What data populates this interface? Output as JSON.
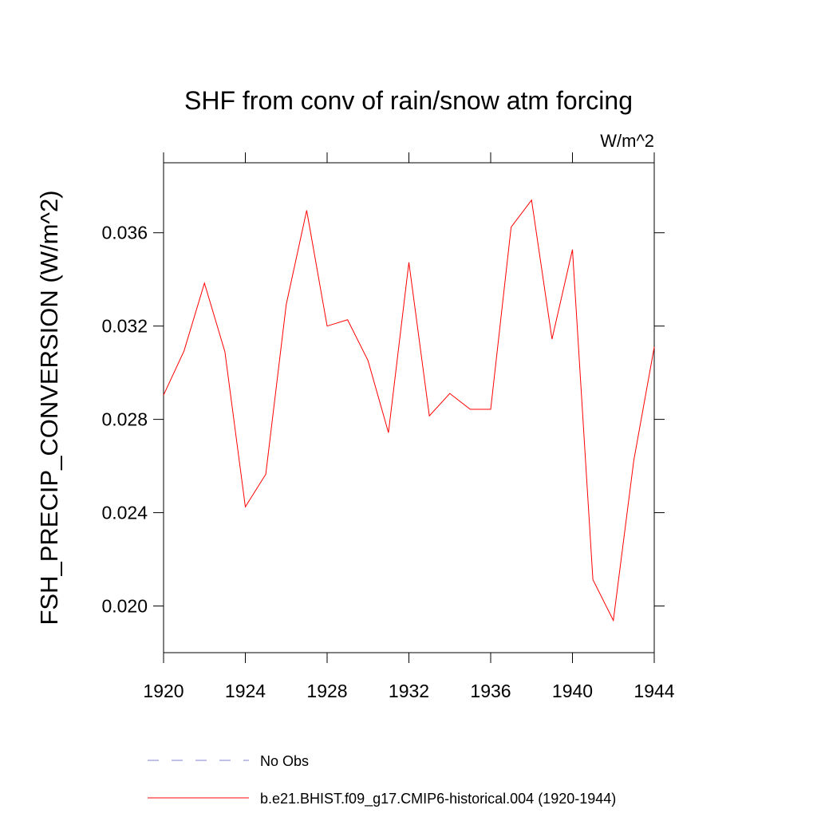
{
  "chart_data": {
    "type": "line",
    "title": "SHF from conv of rain/snow atm forcing",
    "units": "W/m^2",
    "y_label": "FSH_PRECIP_CONVERSION  (W/m^2)",
    "x": [
      1920,
      1921,
      1922,
      1923,
      1924,
      1925,
      1926,
      1927,
      1928,
      1929,
      1930,
      1931,
      1932,
      1933,
      1934,
      1935,
      1936,
      1937,
      1938,
      1939,
      1940,
      1941,
      1942,
      1943,
      1944
    ],
    "series": [
      {
        "name": "No Obs",
        "color": "#7f7fd0",
        "dash": "dashed",
        "values": [
          null,
          null,
          null,
          null,
          null,
          null,
          null,
          null,
          null,
          null,
          null,
          null,
          null,
          null,
          null,
          null,
          null,
          null,
          null,
          null,
          null,
          null,
          null,
          null,
          null
        ]
      },
      {
        "name": "b.e21.BHIST.f09_g17.CMIP6-historical.004 (1920-1944)",
        "color": "#ff0000",
        "dash": "solid",
        "values": [
          0.02904,
          0.03093,
          0.03384,
          0.0309,
          0.02425,
          0.02565,
          0.03292,
          0.03696,
          0.032,
          0.03227,
          0.03052,
          0.02743,
          0.03473,
          0.02815,
          0.02911,
          0.02843,
          0.02843,
          0.03624,
          0.0374,
          0.03144,
          0.03528,
          0.02113,
          0.01938,
          0.02624,
          0.0311
        ]
      }
    ],
    "xlim": [
      1920,
      1944
    ],
    "xticks": [
      1920,
      1924,
      1928,
      1932,
      1936,
      1940,
      1944
    ],
    "ylim": [
      0.018,
      0.039
    ],
    "yticks": [
      {
        "value": 0.02,
        "label": "0.020"
      },
      0.024,
      0.028,
      0.032,
      0.036
    ],
    "grid": false
  }
}
